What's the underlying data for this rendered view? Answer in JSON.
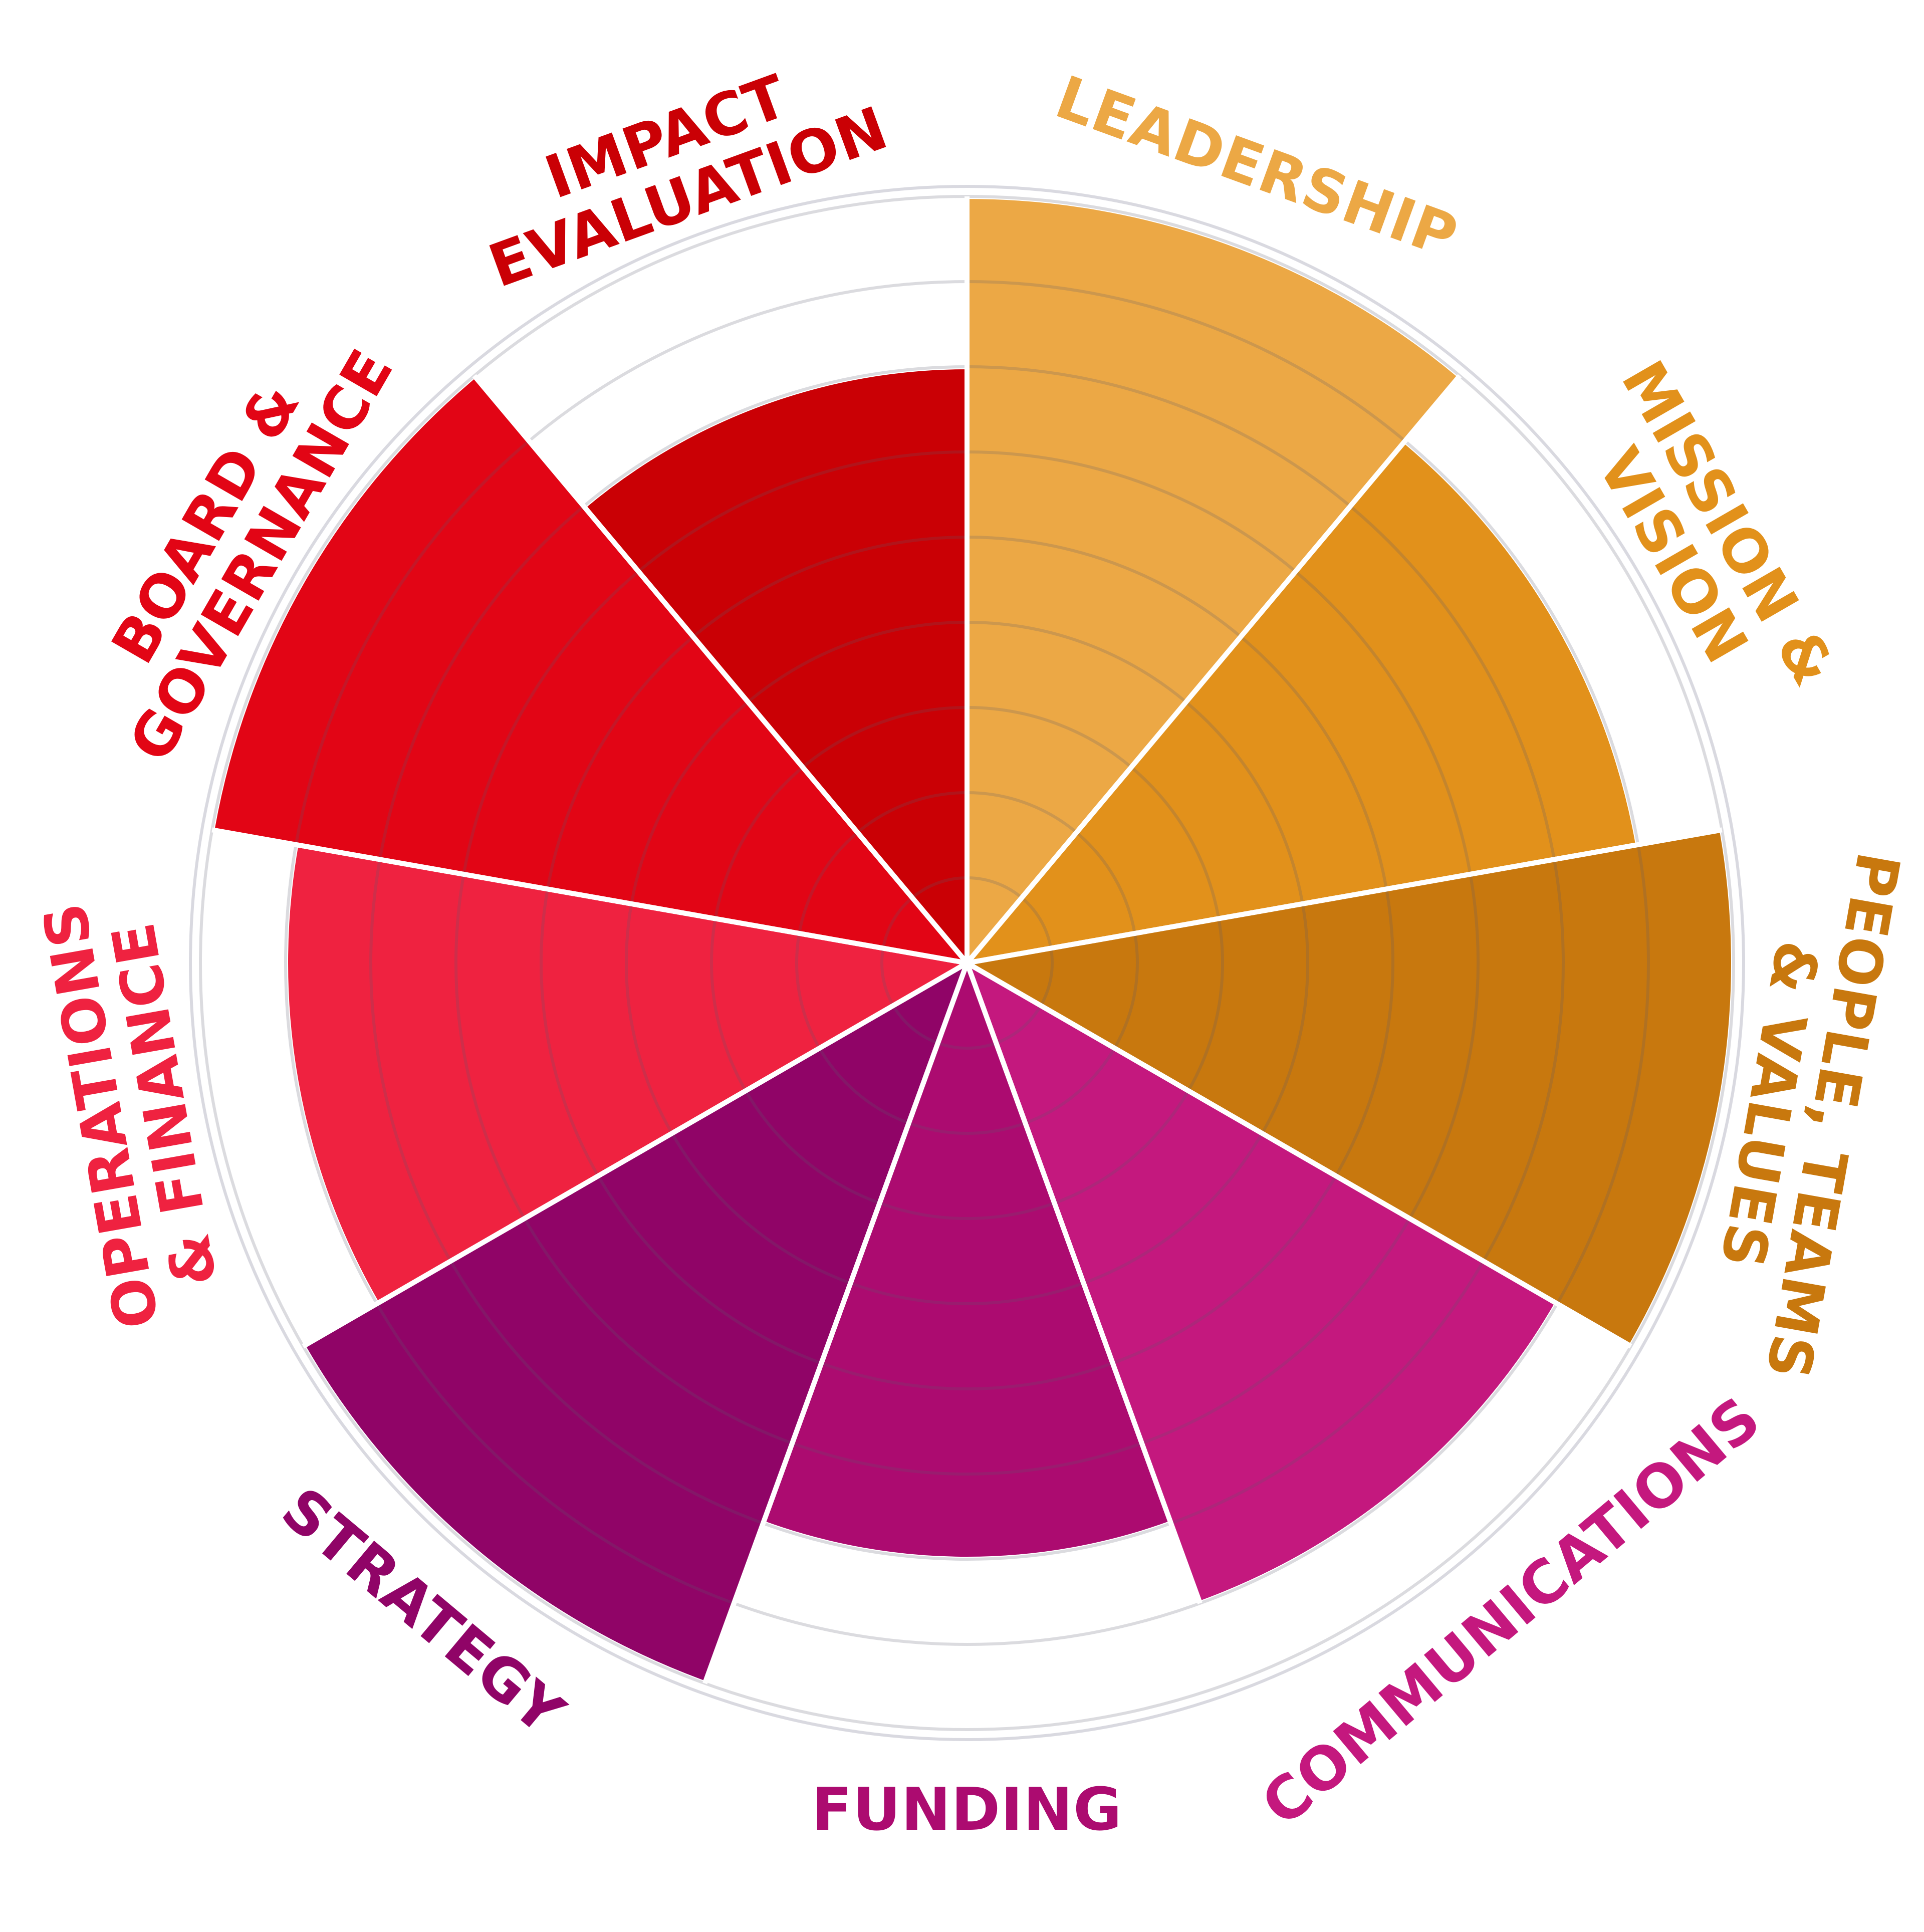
{
  "chart_data": {
    "type": "polar-area",
    "title": "",
    "scale": {
      "min": 0,
      "max": 9,
      "rings": [
        1,
        2,
        3,
        4,
        5,
        6,
        7,
        8,
        9
      ]
    },
    "grid": true,
    "categories": [
      {
        "label_lines": [
          "LEADERSHIP"
        ],
        "value": 9,
        "color": "#ECA845"
      },
      {
        "label_lines": [
          "MISSION &",
          "VISION"
        ],
        "value": 8,
        "color": "#E2911B"
      },
      {
        "label_lines": [
          "PEOPLE, TEAMS",
          "& VALUES"
        ],
        "value": 9,
        "color": "#C8780E"
      },
      {
        "label_lines": [
          "COMMUNICATIONS"
        ],
        "value": 8,
        "color": "#C4187E"
      },
      {
        "label_lines": [
          "FUNDING"
        ],
        "value": 7,
        "color": "#AC0B70"
      },
      {
        "label_lines": [
          "STRATEGY"
        ],
        "value": 9,
        "color": "#900467"
      },
      {
        "label_lines": [
          "OPERATIONS",
          "& FINANCE"
        ],
        "value": 8,
        "color": "#EF2240"
      },
      {
        "label_lines": [
          "BOARD &",
          "GOVERNANCE"
        ],
        "value": 9,
        "color": "#E20515"
      },
      {
        "label_lines": [
          "IMPACT",
          "EVALUATION"
        ],
        "value": 7,
        "color": "#CA0005"
      }
    ]
  }
}
